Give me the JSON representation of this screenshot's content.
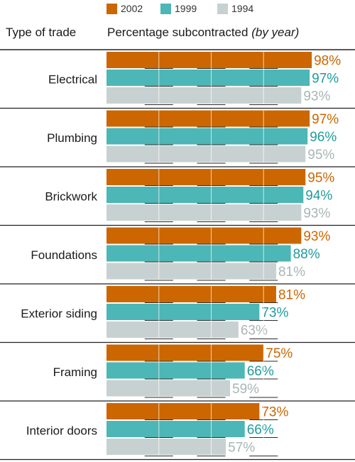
{
  "legend": [
    {
      "label": "2002",
      "color": "#cc6600"
    },
    {
      "label": "1999",
      "color": "#4db6b6"
    },
    {
      "label": "1994",
      "color": "#c8d1d1"
    }
  ],
  "header": {
    "type_of_trade": "Type of trade",
    "percentage_main": "Percentage subcontracted",
    "percentage_suffix": "(by year)"
  },
  "chart_data": {
    "type": "bar",
    "orientation": "horizontal",
    "categories": [
      "Electrical",
      "Plumbing",
      "Brickwork",
      "Foundations",
      "Exterior siding",
      "Framing",
      "Interior doors"
    ],
    "series": [
      {
        "name": "2002",
        "color": "#cc6600",
        "label_color": "#cc6600",
        "values": [
          98,
          97,
          95,
          93,
          81,
          75,
          73
        ]
      },
      {
        "name": "1999",
        "color": "#4db6b6",
        "label_color": "#1f9b9b",
        "values": [
          97,
          96,
          94,
          88,
          73,
          66,
          66
        ]
      },
      {
        "name": "1994",
        "color": "#c8d1d1",
        "label_color": "#a9b5b5",
        "values": [
          93,
          95,
          93,
          81,
          63,
          59,
          57
        ]
      }
    ],
    "value_suffix": "%",
    "xlim": [
      0,
      100
    ],
    "grid": true,
    "legend_position": "top"
  }
}
